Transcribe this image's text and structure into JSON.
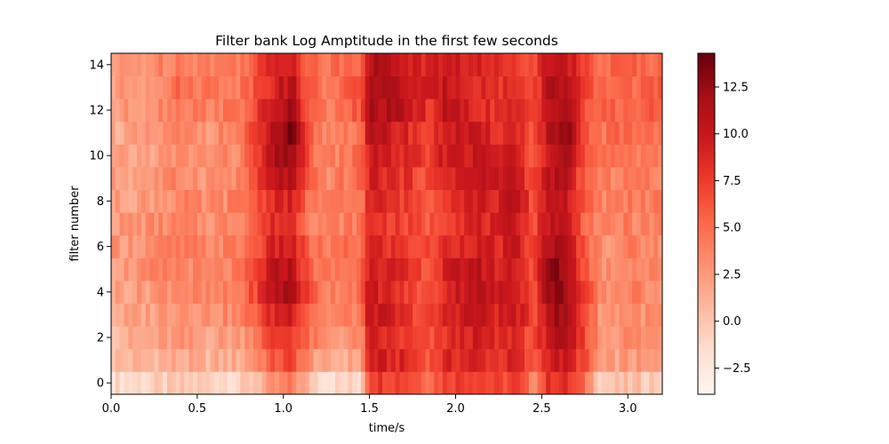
{
  "chart_data": {
    "type": "heatmap",
    "title": "Filter bank Log Amptitude in the first few seconds",
    "xlabel": "time/s",
    "ylabel": "filter number",
    "x_range": [
      0,
      3.2
    ],
    "y_range": [
      -0.5,
      14.5
    ],
    "x_ticks": [
      0.0,
      0.5,
      1.0,
      1.5,
      2.0,
      2.5,
      3.0
    ],
    "x_tick_labels": [
      "0.0",
      "0.5",
      "1.0",
      "1.5",
      "2.0",
      "2.5",
      "3.0"
    ],
    "y_ticks": [
      0,
      2,
      4,
      6,
      8,
      10,
      12,
      14
    ],
    "y_tick_labels": [
      "0",
      "2",
      "4",
      "6",
      "8",
      "10",
      "12",
      "14"
    ],
    "colormap": "Reds",
    "colorbar": {
      "vmin": -3.9,
      "vmax": 14.3,
      "ticks": [
        -2.5,
        0.0,
        2.5,
        5.0,
        7.5,
        10.0,
        12.5
      ],
      "tick_labels": [
        "−2.5",
        "0.0",
        "2.5",
        "5.0",
        "7.5",
        "10.0",
        "12.5"
      ]
    },
    "grid": false,
    "time_step_s": 0.025,
    "rows": 15,
    "segments": [
      {
        "t": 0.0,
        "v": [
          -1.5,
          0.5,
          1.0,
          1.5,
          2.0,
          2.5,
          2.5,
          2.5,
          2.0,
          2.0,
          1.5,
          1.5,
          2.0,
          2.0,
          2.0
        ]
      },
      {
        "t": 0.2,
        "v": [
          -1.0,
          1.0,
          1.5,
          2.0,
          2.5,
          3.0,
          3.0,
          3.0,
          2.5,
          2.5,
          2.0,
          2.0,
          3.0,
          3.0,
          3.0
        ]
      },
      {
        "t": 0.4,
        "v": [
          -0.5,
          1.5,
          2.5,
          3.5,
          4.0,
          4.0,
          4.0,
          3.5,
          3.5,
          3.5,
          3.0,
          3.5,
          4.5,
          5.0,
          4.5
        ]
      },
      {
        "t": 0.55,
        "v": [
          -0.5,
          1.0,
          2.0,
          3.0,
          3.0,
          3.0,
          3.5,
          3.0,
          3.0,
          3.0,
          3.0,
          3.0,
          4.0,
          4.5,
          4.0
        ]
      },
      {
        "t": 0.75,
        "v": [
          -1.0,
          1.5,
          2.5,
          3.5,
          4.0,
          4.0,
          4.0,
          4.0,
          4.0,
          3.5,
          3.5,
          4.0,
          4.5,
          4.5,
          4.5
        ]
      },
      {
        "t": 0.95,
        "v": [
          2.5,
          6.0,
          7.5,
          9.0,
          11.0,
          10.5,
          9.0,
          8.5,
          9.0,
          10.5,
          11.0,
          11.0,
          10.0,
          9.5,
          9.0
        ]
      },
      {
        "t": 1.05,
        "v": [
          4.0,
          7.0,
          8.0,
          10.0,
          12.0,
          11.0,
          9.5,
          8.5,
          9.0,
          11.0,
          13.0,
          13.5,
          12.0,
          11.0,
          10.0
        ]
      },
      {
        "t": 1.15,
        "v": [
          0.5,
          3.0,
          4.5,
          5.5,
          6.5,
          5.5,
          5.0,
          4.5,
          4.5,
          5.0,
          5.5,
          5.5,
          5.5,
          5.5,
          5.5
        ]
      },
      {
        "t": 1.25,
        "v": [
          -1.5,
          1.0,
          2.5,
          3.5,
          4.0,
          4.0,
          4.0,
          3.5,
          3.5,
          3.5,
          3.5,
          3.5,
          4.0,
          4.5,
          4.5
        ]
      },
      {
        "t": 1.45,
        "v": [
          -1.0,
          2.0,
          3.0,
          4.0,
          5.0,
          5.0,
          5.0,
          4.5,
          4.5,
          5.0,
          5.0,
          5.0,
          6.0,
          6.0,
          6.0
        ]
      },
      {
        "t": 1.5,
        "v": [
          8.0,
          9.5,
          9.0,
          10.5,
          10.0,
          10.5,
          9.0,
          8.5,
          9.0,
          9.5,
          10.0,
          10.5,
          11.5,
          12.0,
          11.5
        ]
      },
      {
        "t": 1.7,
        "v": [
          7.5,
          8.5,
          7.5,
          8.0,
          7.5,
          8.0,
          7.5,
          7.0,
          7.5,
          8.0,
          8.5,
          9.0,
          10.5,
          10.5,
          10.0
        ]
      },
      {
        "t": 1.85,
        "v": [
          5.5,
          6.5,
          6.0,
          6.5,
          6.0,
          6.5,
          6.5,
          6.0,
          6.5,
          6.5,
          7.0,
          7.0,
          8.0,
          8.5,
          8.5
        ]
      },
      {
        "t": 1.95,
        "v": [
          7.5,
          8.5,
          8.0,
          9.0,
          9.0,
          9.0,
          8.5,
          8.0,
          8.5,
          9.0,
          10.0,
          10.0,
          10.5,
          10.5,
          10.0
        ]
      },
      {
        "t": 2.1,
        "v": [
          8.0,
          9.0,
          9.5,
          10.5,
          11.0,
          11.0,
          9.5,
          9.0,
          9.5,
          10.0,
          10.0,
          9.5,
          9.0,
          9.0,
          9.0
        ]
      },
      {
        "t": 2.25,
        "v": [
          6.5,
          8.0,
          8.0,
          9.0,
          9.5,
          9.0,
          8.5,
          8.5,
          9.0,
          10.0,
          9.5,
          8.5,
          8.0,
          8.0,
          8.0
        ]
      },
      {
        "t": 2.35,
        "v": [
          7.5,
          9.0,
          9.0,
          10.0,
          10.5,
          10.0,
          10.0,
          10.5,
          11.0,
          10.5,
          9.5,
          9.0,
          8.5,
          8.5,
          8.5
        ]
      },
      {
        "t": 2.45,
        "v": [
          3.5,
          5.5,
          6.0,
          6.5,
          6.5,
          6.5,
          6.5,
          6.5,
          6.5,
          6.5,
          6.5,
          6.5,
          6.5,
          6.5,
          6.5
        ]
      },
      {
        "t": 2.55,
        "v": [
          8.5,
          10.0,
          11.0,
          12.0,
          13.0,
          13.5,
          12.0,
          11.0,
          11.0,
          11.0,
          11.0,
          11.0,
          11.5,
          11.5,
          11.0
        ]
      },
      {
        "t": 2.65,
        "v": [
          8.0,
          9.5,
          10.5,
          11.5,
          12.0,
          11.5,
          10.5,
          10.0,
          10.0,
          10.5,
          12.0,
          12.5,
          12.0,
          11.0,
          10.5
        ]
      },
      {
        "t": 2.75,
        "v": [
          4.5,
          6.5,
          7.0,
          7.0,
          7.0,
          6.5,
          6.0,
          5.5,
          5.5,
          5.5,
          6.0,
          6.0,
          6.5,
          6.5,
          6.5
        ]
      },
      {
        "t": 2.85,
        "v": [
          -0.5,
          1.5,
          2.5,
          2.5,
          3.0,
          3.0,
          3.0,
          3.0,
          3.5,
          3.5,
          4.0,
          4.5,
          5.0,
          5.0,
          5.0
        ]
      },
      {
        "t": 3.0,
        "v": [
          0.0,
          2.5,
          3.5,
          3.5,
          4.0,
          4.0,
          4.0,
          4.0,
          4.5,
          4.5,
          5.0,
          5.5,
          5.5,
          5.5,
          5.5
        ]
      },
      {
        "t": 3.1,
        "v": [
          0.0,
          2.0,
          3.0,
          3.0,
          3.5,
          3.5,
          3.5,
          3.5,
          4.0,
          4.0,
          4.5,
          5.0,
          5.5,
          5.5,
          5.5
        ]
      },
      {
        "t": 3.2,
        "v": [
          0.0,
          2.0,
          3.0,
          3.0,
          3.5,
          3.5,
          3.5,
          3.5,
          4.0,
          4.0,
          4.5,
          5.0,
          5.5,
          5.5,
          5.5
        ]
      }
    ]
  }
}
